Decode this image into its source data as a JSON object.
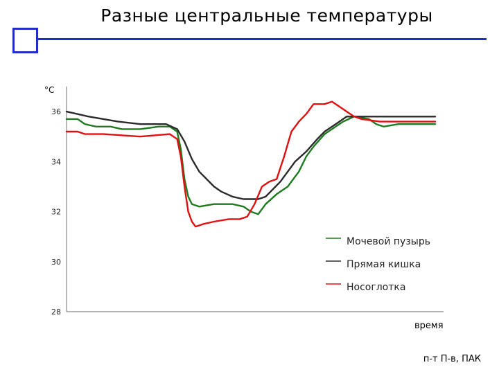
{
  "slide": {
    "title": "Разные центральные температуры",
    "footer": "п-т П-в, ПАК",
    "accent_color": "#1f2fc4"
  },
  "chart_data": {
    "type": "line",
    "title": "",
    "ylabel": "°C",
    "xlabel": "время",
    "ylim": [
      28,
      37
    ],
    "yticks": [
      28,
      30,
      32,
      34,
      36
    ],
    "x_range": [
      0,
      100
    ],
    "grid": false,
    "legend_position": "center-right",
    "series": [
      {
        "name": "Мочевой пузырь",
        "color": "#1e7a1e",
        "points": [
          [
            0,
            35.7
          ],
          [
            3,
            35.7
          ],
          [
            5,
            35.5
          ],
          [
            8,
            35.4
          ],
          [
            12,
            35.4
          ],
          [
            15,
            35.3
          ],
          [
            20,
            35.3
          ],
          [
            25,
            35.4
          ],
          [
            28,
            35.4
          ],
          [
            30,
            35.2
          ],
          [
            31,
            34.5
          ],
          [
            32,
            33.3
          ],
          [
            33,
            32.6
          ],
          [
            34,
            32.3
          ],
          [
            36,
            32.2
          ],
          [
            40,
            32.3
          ],
          [
            45,
            32.3
          ],
          [
            48,
            32.2
          ],
          [
            50,
            32.0
          ],
          [
            52,
            31.9
          ],
          [
            54,
            32.3
          ],
          [
            57,
            32.7
          ],
          [
            60,
            33.0
          ],
          [
            63,
            33.6
          ],
          [
            65,
            34.2
          ],
          [
            67,
            34.6
          ],
          [
            70,
            35.1
          ],
          [
            73,
            35.4
          ],
          [
            75,
            35.6
          ],
          [
            78,
            35.8
          ],
          [
            82,
            35.7
          ],
          [
            84,
            35.5
          ],
          [
            86,
            35.4
          ],
          [
            90,
            35.5
          ],
          [
            95,
            35.5
          ],
          [
            100,
            35.5
          ]
        ]
      },
      {
        "name": "Прямая кишка",
        "color": "#2a2a2a",
        "points": [
          [
            0,
            36.0
          ],
          [
            3,
            35.9
          ],
          [
            6,
            35.8
          ],
          [
            10,
            35.7
          ],
          [
            14,
            35.6
          ],
          [
            20,
            35.5
          ],
          [
            27,
            35.5
          ],
          [
            30,
            35.3
          ],
          [
            32,
            34.8
          ],
          [
            34,
            34.1
          ],
          [
            36,
            33.6
          ],
          [
            38,
            33.3
          ],
          [
            40,
            33.0
          ],
          [
            42,
            32.8
          ],
          [
            45,
            32.6
          ],
          [
            48,
            32.5
          ],
          [
            50,
            32.5
          ],
          [
            52,
            32.5
          ],
          [
            54,
            32.6
          ],
          [
            56,
            32.9
          ],
          [
            58,
            33.2
          ],
          [
            60,
            33.6
          ],
          [
            62,
            34.0
          ],
          [
            65,
            34.4
          ],
          [
            68,
            34.9
          ],
          [
            70,
            35.2
          ],
          [
            73,
            35.5
          ],
          [
            76,
            35.8
          ],
          [
            80,
            35.8
          ],
          [
            85,
            35.8
          ],
          [
            90,
            35.8
          ],
          [
            100,
            35.8
          ]
        ]
      },
      {
        "name": "Носоглотка",
        "color": "#e01010",
        "points": [
          [
            0,
            35.2
          ],
          [
            3,
            35.2
          ],
          [
            5,
            35.1
          ],
          [
            10,
            35.1
          ],
          [
            20,
            35.0
          ],
          [
            28,
            35.1
          ],
          [
            30,
            34.9
          ],
          [
            31,
            34.2
          ],
          [
            32,
            33.0
          ],
          [
            33,
            32.0
          ],
          [
            34,
            31.6
          ],
          [
            35,
            31.4
          ],
          [
            37,
            31.5
          ],
          [
            40,
            31.6
          ],
          [
            44,
            31.7
          ],
          [
            47,
            31.7
          ],
          [
            49,
            31.8
          ],
          [
            51,
            32.3
          ],
          [
            53,
            33.0
          ],
          [
            55,
            33.2
          ],
          [
            57,
            33.3
          ],
          [
            59,
            34.2
          ],
          [
            61,
            35.2
          ],
          [
            63,
            35.6
          ],
          [
            65,
            35.9
          ],
          [
            67,
            36.3
          ],
          [
            70,
            36.3
          ],
          [
            72,
            36.4
          ],
          [
            74,
            36.2
          ],
          [
            76,
            36.0
          ],
          [
            78,
            35.8
          ],
          [
            80,
            35.7
          ],
          [
            85,
            35.6
          ],
          [
            90,
            35.6
          ],
          [
            95,
            35.6
          ],
          [
            100,
            35.6
          ]
        ]
      }
    ]
  }
}
